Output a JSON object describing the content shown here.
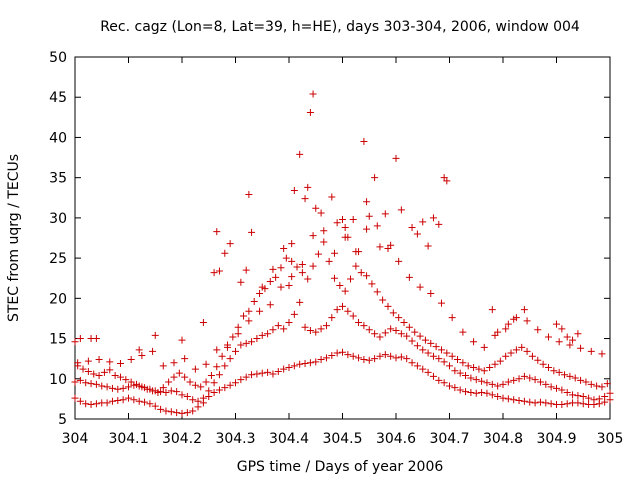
{
  "chart_data": {
    "type": "scatter",
    "title": "Rec. cagz (Lon=8, Lat=39, h=HE), days 303-304, 2006, window 004",
    "xlabel": "GPS time / Days of year 2006",
    "ylabel": "STEC from uqrg / TECUs",
    "xlim": [
      304,
      305
    ],
    "ylim": [
      5,
      50
    ],
    "xticks": [
      "304",
      "304.1",
      "304.2",
      "304.3",
      "304.4",
      "304.5",
      "304.6",
      "304.7",
      "304.8",
      "304.9",
      "305"
    ],
    "yticks": [
      "5",
      "10",
      "15",
      "20",
      "25",
      "30",
      "35",
      "40",
      "45",
      "50"
    ],
    "grid": false,
    "legend": "none",
    "marker": "+",
    "color": "#cc0000",
    "series": [
      {
        "x": [
          304.0,
          304.01,
          304.02,
          304.03,
          304.04,
          304.05,
          304.06,
          304.07,
          304.08,
          304.09,
          304.1,
          304.11,
          304.12,
          304.13,
          304.14,
          304.15,
          304.16,
          304.17,
          304.18,
          304.19,
          304.2,
          304.21,
          304.22,
          304.23,
          304.24,
          304.25,
          304.26,
          304.27,
          304.28,
          304.29,
          304.3,
          304.31,
          304.32,
          304.33,
          304.34,
          304.35,
          304.36,
          304.37,
          304.38,
          304.39,
          304.4,
          304.41,
          304.42,
          304.43,
          304.44,
          304.45,
          304.46,
          304.47,
          304.48,
          304.49,
          304.5,
          304.51,
          304.52,
          304.53,
          304.54,
          304.55,
          304.56,
          304.57,
          304.58,
          304.59,
          304.6,
          304.61,
          304.62,
          304.63,
          304.64,
          304.65,
          304.66,
          304.67,
          304.68,
          304.69,
          304.7,
          304.71,
          304.72,
          304.73,
          304.74,
          304.75,
          304.76,
          304.77,
          304.78,
          304.79,
          304.8,
          304.81,
          304.82,
          304.83,
          304.84,
          304.85,
          304.86,
          304.87,
          304.88,
          304.89,
          304.9,
          304.91,
          304.92,
          304.93,
          304.94,
          304.95,
          304.96,
          304.97,
          304.98,
          304.99,
          305.0,
          304.0,
          304.01,
          304.02,
          304.03,
          304.04,
          304.05,
          304.06,
          304.07,
          304.08,
          304.09,
          304.1,
          304.11,
          304.12,
          304.13,
          304.14,
          304.15,
          304.16,
          304.17,
          304.18,
          304.19,
          304.2,
          304.21,
          304.22,
          304.23,
          304.24,
          304.25,
          304.26,
          304.27,
          304.28,
          304.29,
          304.3,
          304.31,
          304.32,
          304.33,
          304.34,
          304.35,
          304.36,
          304.37,
          304.38,
          304.39,
          304.4,
          304.41,
          304.42,
          304.43,
          304.44,
          304.45,
          304.46,
          304.47,
          304.48,
          304.49,
          304.5,
          304.51,
          304.52,
          304.53,
          304.54,
          304.55,
          304.56,
          304.57,
          304.58,
          304.59,
          304.6,
          304.61,
          304.62,
          304.63,
          304.64,
          304.65,
          304.66,
          304.67,
          304.68,
          304.69,
          304.7,
          304.71,
          304.72,
          304.73,
          304.74,
          304.75,
          304.76,
          304.77,
          304.78,
          304.79,
          304.8,
          304.81,
          304.82,
          304.83,
          304.84,
          304.85,
          304.86,
          304.87,
          304.88,
          304.89,
          304.9,
          304.91,
          304.92,
          304.93,
          304.94,
          304.95,
          304.96,
          304.97,
          304.98,
          304.99,
          305.0,
          304.005,
          304.015,
          304.025,
          304.035,
          304.045,
          304.055,
          304.065,
          304.075,
          304.085,
          304.095,
          304.105,
          304.115,
          304.125,
          304.135,
          304.145,
          304.155,
          304.165,
          304.175,
          304.185,
          304.195,
          304.205,
          304.215,
          304.225,
          304.235,
          304.245,
          304.255,
          304.265,
          304.275,
          304.285,
          304.295,
          304.305,
          304.315,
          304.325,
          304.335,
          304.345,
          304.355,
          304.365,
          304.375,
          304.385,
          304.395,
          304.405,
          304.415,
          304.425,
          304.435,
          304.445,
          304.455,
          304.465,
          304.475,
          304.485,
          304.495,
          304.505,
          304.515,
          304.525,
          304.535,
          304.545,
          304.555,
          304.565,
          304.575,
          304.585,
          304.595,
          304.605,
          304.615,
          304.625,
          304.635,
          304.645,
          304.655,
          304.665,
          304.675,
          304.685,
          304.695,
          304.705,
          304.715,
          304.725,
          304.735,
          304.745,
          304.755,
          304.765,
          304.775,
          304.785,
          304.795,
          304.805,
          304.815,
          304.825,
          304.835,
          304.845,
          304.855,
          304.865,
          304.875,
          304.885,
          304.895,
          304.905,
          304.915,
          304.925,
          304.935,
          304.945,
          304.955,
          304.965,
          304.975,
          304.985,
          304.995,
          304.005,
          304.025,
          304.045,
          304.065,
          304.085,
          304.105,
          304.125,
          304.145,
          304.165,
          304.185,
          304.205,
          304.225,
          304.245,
          304.265,
          304.285,
          304.305,
          304.325,
          304.345,
          304.365,
          304.385,
          304.405,
          304.425,
          304.445,
          304.465,
          304.485,
          304.505,
          304.525,
          304.545,
          304.565,
          304.585,
          304.605,
          304.625,
          304.645,
          304.665,
          304.685,
          304.705,
          304.725,
          304.745,
          304.765,
          304.785,
          304.805,
          304.825,
          304.845,
          304.865,
          304.885,
          304.905,
          304.925,
          304.945,
          304.965,
          304.985,
          304.0,
          304.01,
          304.03,
          304.04,
          304.12,
          304.15,
          304.2,
          304.24,
          304.26,
          304.265,
          304.27,
          304.28,
          304.29,
          304.31,
          304.32,
          304.325,
          304.33,
          304.35,
          304.37,
          304.39,
          304.4,
          304.405,
          304.41,
          304.42,
          304.43,
          304.435,
          304.44,
          304.445,
          304.45,
          304.46,
          304.48,
          304.49,
          304.5,
          304.505,
          304.51,
          304.52,
          304.53,
          304.54,
          304.545,
          304.55,
          304.56,
          304.57,
          304.58,
          304.59,
          304.6,
          304.61,
          304.63,
          304.64,
          304.65,
          304.66,
          304.67,
          304.68,
          304.69,
          304.695,
          304.78,
          304.79,
          304.81,
          304.82,
          304.84,
          304.9,
          304.91,
          304.92,
          304.93,
          304.94
        ],
        "y": [
          7.6,
          7.2,
          6.9,
          6.8,
          6.9,
          7.0,
          7.0,
          7.2,
          7.3,
          7.4,
          7.6,
          7.4,
          7.2,
          7.1,
          6.9,
          6.6,
          6.2,
          6.0,
          5.9,
          5.8,
          5.7,
          5.8,
          6.0,
          6.5,
          7.0,
          7.8,
          8.3,
          8.6,
          8.9,
          9.2,
          9.5,
          9.9,
          10.2,
          10.5,
          10.6,
          10.7,
          10.8,
          10.6,
          10.9,
          11.2,
          11.4,
          11.6,
          11.8,
          11.9,
          12.0,
          12.1,
          12.4,
          12.6,
          12.9,
          13.2,
          13.3,
          13.0,
          12.8,
          12.6,
          12.4,
          12.3,
          12.5,
          12.8,
          13.0,
          12.8,
          12.6,
          12.7,
          12.5,
          12.0,
          11.6,
          11.2,
          10.8,
          10.3,
          9.8,
          9.5,
          9.1,
          8.9,
          8.6,
          8.4,
          8.3,
          8.2,
          8.3,
          8.2,
          8.0,
          7.8,
          7.6,
          7.5,
          7.4,
          7.3,
          7.2,
          7.1,
          7.0,
          7.1,
          7.0,
          6.9,
          6.8,
          6.8,
          6.9,
          7.0,
          7.0,
          6.9,
          6.8,
          6.8,
          6.9,
          7.1,
          7.4,
          9.6,
          9.8,
          9.5,
          9.4,
          9.3,
          9.1,
          9.0,
          8.8,
          8.7,
          8.8,
          9.0,
          9.2,
          9.1,
          8.9,
          8.7,
          8.5,
          8.4,
          8.3,
          8.5,
          8.4,
          8.0,
          7.8,
          7.4,
          7.2,
          7.6,
          8.5,
          9.5,
          10.5,
          11.6,
          12.5,
          13.4,
          14.2,
          14.4,
          14.6,
          15.0,
          15.4,
          15.6,
          16.1,
          16.6,
          16.2,
          17.0,
          18.0,
          19.5,
          16.4,
          16.0,
          15.8,
          16.2,
          16.6,
          17.6,
          18.6,
          19.0,
          18.4,
          17.8,
          17.0,
          16.6,
          16.1,
          15.6,
          15.2,
          15.7,
          16.2,
          16.0,
          15.6,
          15.3,
          14.7,
          14.1,
          13.6,
          13.2,
          12.8,
          12.5,
          12.1,
          11.6,
          11.0,
          10.7,
          10.4,
          10.1,
          9.9,
          9.7,
          9.5,
          9.3,
          9.1,
          9.3,
          9.6,
          9.8,
          10.0,
          10.3,
          10.1,
          9.9,
          9.6,
          9.3,
          9.0,
          8.8,
          8.6,
          8.3,
          8.0,
          7.9,
          7.8,
          7.6,
          7.4,
          7.5,
          7.8,
          8.2,
          11.6,
          11.2,
          10.9,
          10.6,
          10.4,
          10.8,
          11.1,
          10.4,
          10.2,
          9.9,
          9.6,
          9.3,
          9.0,
          8.7,
          8.5,
          8.3,
          8.9,
          9.6,
          10.2,
          10.7,
          10.2,
          9.6,
          9.2,
          9.0,
          9.6,
          10.4,
          11.5,
          12.8,
          13.9,
          15.2,
          16.4,
          17.8,
          18.4,
          19.6,
          20.6,
          21.2,
          22.1,
          22.6,
          23.8,
          25.0,
          24.6,
          23.9,
          23.2,
          22.4,
          24.0,
          25.5,
          27.0,
          24.6,
          22.5,
          21.6,
          20.9,
          22.4,
          24.0,
          23.2,
          22.8,
          21.8,
          20.8,
          19.8,
          19.0,
          18.2,
          17.6,
          17.0,
          16.4,
          15.8,
          15.3,
          14.8,
          14.4,
          14.0,
          13.6,
          13.2,
          12.8,
          12.4,
          12.0,
          11.6,
          11.4,
          11.2,
          11.0,
          11.4,
          11.8,
          12.2,
          12.8,
          13.2,
          13.6,
          13.9,
          13.4,
          12.8,
          12.3,
          11.8,
          11.4,
          11.0,
          10.8,
          10.5,
          10.3,
          10.1,
          9.8,
          9.6,
          9.3,
          9.1,
          9.0,
          9.4,
          12.0,
          12.2,
          12.4,
          12.1,
          11.9,
          12.4,
          12.9,
          13.4,
          11.6,
          12.0,
          12.5,
          11.2,
          11.8,
          13.6,
          14.2,
          15.6,
          17.2,
          18.4,
          19.2,
          21.4,
          22.7,
          24.2,
          27.8,
          28.4,
          25.6,
          27.6,
          25.8,
          28.6,
          29.0,
          26.2,
          24.6,
          22.6,
          21.4,
          20.6,
          19.4,
          17.6,
          15.8,
          14.6,
          13.9,
          15.4,
          16.2,
          17.6,
          17.2,
          16.1,
          15.2,
          14.6,
          14.2,
          13.8,
          13.4,
          13.1,
          14.6,
          15.0,
          15.0,
          15.0,
          13.6,
          15.4,
          14.8,
          17.0,
          23.2,
          28.3,
          23.4,
          25.6,
          26.8,
          22.0,
          23.5,
          32.9,
          28.2,
          21.4,
          23.6,
          26.2,
          21.6,
          26.8,
          33.4,
          37.9,
          32.4,
          33.8,
          43.1,
          45.4,
          31.2,
          30.6,
          32.6,
          29.4,
          29.8,
          28.8,
          27.6,
          29.8,
          25.8,
          39.5,
          32.0,
          30.2,
          35.0,
          26.4,
          30.5,
          26.6,
          37.4,
          31.0,
          28.8,
          28.0,
          29.5,
          26.5,
          30.0,
          29.2,
          35.0,
          34.6,
          18.6,
          15.8,
          16.8,
          17.4,
          18.6,
          16.8,
          16.2,
          15.2,
          14.8,
          15.6
        ]
      }
    ]
  }
}
